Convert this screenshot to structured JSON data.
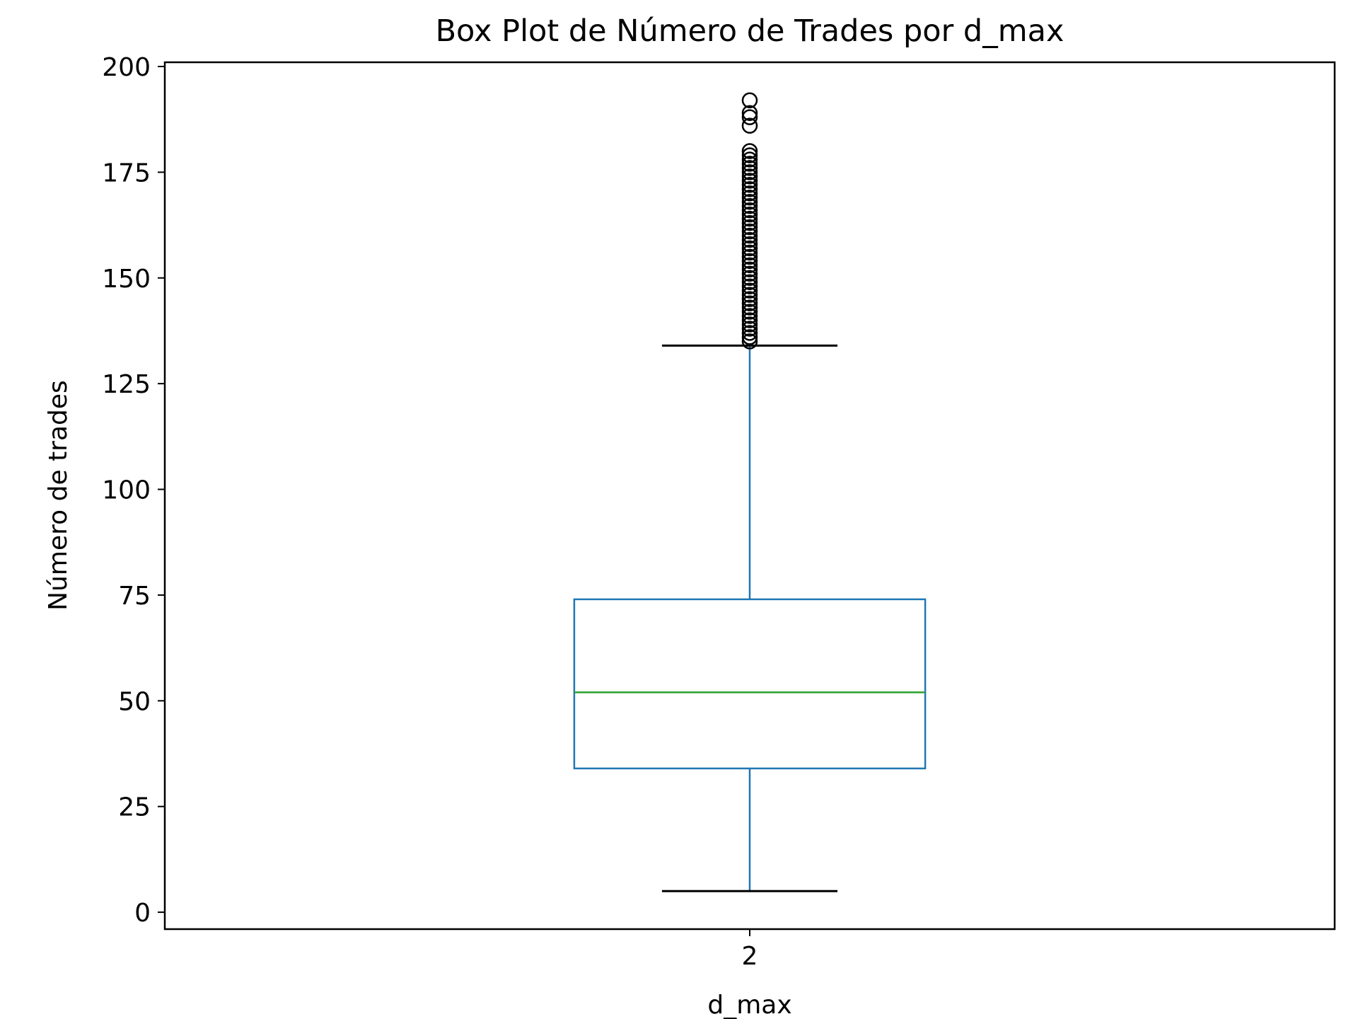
{
  "chart_data": {
    "type": "box",
    "title": "Box Plot de Número de Trades por d_max",
    "xlabel": "d_max",
    "ylabel": "Número de trades",
    "categories": [
      "2"
    ],
    "ylim": [
      -4,
      201
    ],
    "yticks": [
      0,
      25,
      50,
      75,
      100,
      125,
      150,
      175,
      200
    ],
    "grid": false,
    "boxes": [
      {
        "category": "2",
        "whisker_low": 5,
        "q1": 34,
        "median": 52,
        "q3": 74,
        "whisker_high": 134,
        "outliers": [
          135,
          136,
          137,
          138,
          139,
          140,
          141,
          142,
          143,
          144,
          145,
          146,
          147,
          148,
          149,
          150,
          151,
          152,
          153,
          154,
          155,
          156,
          157,
          158,
          159,
          160,
          161,
          162,
          163,
          164,
          165,
          166,
          167,
          168,
          169,
          170,
          171,
          172,
          173,
          174,
          175,
          176,
          177,
          178,
          179,
          180,
          186,
          188,
          189,
          192
        ]
      }
    ],
    "colors": {
      "box": "#1f77b4",
      "median": "#2ca02c",
      "caps": "#000000",
      "outliers": "#000000"
    }
  }
}
